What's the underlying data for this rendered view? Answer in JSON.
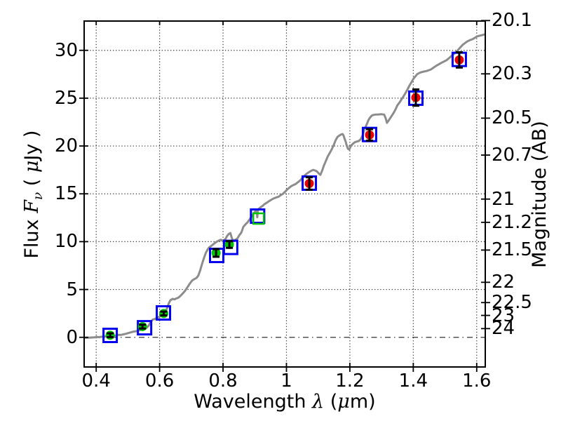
{
  "figure": {
    "background": "#ffffff",
    "ylabel_right": "Magnitude (AB)"
  },
  "chart_data": {
    "type": "line",
    "title": "",
    "xlabel": "Wavelength λ (μm)",
    "xlabel_parts": [
      {
        "text": "Wavelength  ",
        "style": "plain"
      },
      {
        "text": "λ",
        "style": "math"
      },
      {
        "text": " (",
        "style": "plain"
      },
      {
        "text": "μ",
        "style": "math"
      },
      {
        "text": "m)",
        "style": "plain"
      }
    ],
    "ylabel_left": "Flux Fν ( μJy )",
    "ylabel_left_parts": [
      {
        "text": "Flux  ",
        "style": "plain"
      },
      {
        "text": "F",
        "style": "math"
      },
      {
        "text": "ν",
        "style": "mathsub"
      },
      {
        "text": "  ( ",
        "style": "plain"
      },
      {
        "text": "μ",
        "style": "math"
      },
      {
        "text": "Jy )",
        "style": "plain"
      }
    ],
    "ylabel_right": "Magnitude (AB)",
    "xlim": [
      0.362,
      1.627
    ],
    "ylim": [
      -3.1,
      33.06
    ],
    "grid": true,
    "grid_style": "dotted",
    "zero_line_style": "dash-dot",
    "x_ticks": [
      {
        "v": 0.4,
        "label": "0.4"
      },
      {
        "v": 0.6,
        "label": "0.6"
      },
      {
        "v": 0.8,
        "label": "0.8"
      },
      {
        "v": 1.0,
        "label": "1"
      },
      {
        "v": 1.2,
        "label": "1.2"
      },
      {
        "v": 1.4,
        "label": "1.4"
      },
      {
        "v": 1.6,
        "label": "1.6"
      }
    ],
    "y_ticks": [
      {
        "v": 0,
        "label": "0"
      },
      {
        "v": 5,
        "label": "5"
      },
      {
        "v": 10,
        "label": "10"
      },
      {
        "v": 15,
        "label": "15"
      },
      {
        "v": 20,
        "label": "20"
      },
      {
        "v": 25,
        "label": "25"
      },
      {
        "v": 30,
        "label": "30"
      }
    ],
    "right_ticks": [
      {
        "label": "20.1",
        "flux": 33.11
      },
      {
        "label": "20.3",
        "flux": 27.54
      },
      {
        "label": "20.5",
        "flux": 22.91
      },
      {
        "label": "20.7",
        "flux": 19.05
      },
      {
        "label": "21",
        "flux": 14.45
      },
      {
        "label": "21.2",
        "flux": 12.02
      },
      {
        "label": "21.5",
        "flux": 9.12
      },
      {
        "label": "22",
        "flux": 5.75
      },
      {
        "label": "22.5",
        "flux": 3.63
      },
      {
        "label": "23",
        "flux": 2.29
      },
      {
        "label": "24",
        "flux": 0.91
      }
    ],
    "colors": {
      "spectrum": "#8c8c8c",
      "model_square": "#0000ee",
      "observed_green": "#00c400",
      "observed_red": "#ee0000",
      "error_bar": "#000000",
      "grid": "#333333",
      "frame": "#000000"
    },
    "series": [
      {
        "name": "model-spectrum",
        "kind": "line",
        "color": "#8c8c8c",
        "linewidth": 3,
        "points": [
          [
            0.362,
            -0.05
          ],
          [
            0.375,
            -0.04
          ],
          [
            0.385,
            -0.02
          ],
          [
            0.395,
            0.0
          ],
          [
            0.403,
            0.03
          ],
          [
            0.41,
            0.02
          ],
          [
            0.417,
            0.06
          ],
          [
            0.424,
            0.05
          ],
          [
            0.43,
            0.1
          ],
          [
            0.437,
            0.09
          ],
          [
            0.444,
            0.14
          ],
          [
            0.451,
            0.17
          ],
          [
            0.457,
            0.15
          ],
          [
            0.464,
            0.21
          ],
          [
            0.471,
            0.26
          ],
          [
            0.478,
            0.25
          ],
          [
            0.486,
            0.31
          ],
          [
            0.494,
            0.37
          ],
          [
            0.502,
            0.45
          ],
          [
            0.51,
            0.53
          ],
          [
            0.518,
            0.6
          ],
          [
            0.526,
            0.64
          ],
          [
            0.534,
            0.71
          ],
          [
            0.542,
            0.8
          ],
          [
            0.55,
            0.88
          ],
          [
            0.558,
            0.96
          ],
          [
            0.565,
            1.2
          ],
          [
            0.572,
            1.6
          ],
          [
            0.578,
            1.85
          ],
          [
            0.584,
            1.9
          ],
          [
            0.59,
            2.0
          ],
          [
            0.596,
            2.1
          ],
          [
            0.602,
            2.2
          ],
          [
            0.608,
            2.32
          ],
          [
            0.614,
            2.45
          ],
          [
            0.619,
            2.72
          ],
          [
            0.624,
            3.1
          ],
          [
            0.629,
            3.55
          ],
          [
            0.634,
            3.88
          ],
          [
            0.641,
            4.02
          ],
          [
            0.647,
            3.96
          ],
          [
            0.652,
            4.06
          ],
          [
            0.658,
            4.12
          ],
          [
            0.663,
            4.25
          ],
          [
            0.668,
            4.42
          ],
          [
            0.674,
            4.62
          ],
          [
            0.68,
            4.85
          ],
          [
            0.685,
            5.1
          ],
          [
            0.69,
            5.35
          ],
          [
            0.697,
            5.7
          ],
          [
            0.703,
            5.95
          ],
          [
            0.71,
            6.1
          ],
          [
            0.716,
            6.2
          ],
          [
            0.722,
            6.45
          ],
          [
            0.728,
            7.0
          ],
          [
            0.734,
            7.7
          ],
          [
            0.74,
            8.3
          ],
          [
            0.746,
            8.85
          ],
          [
            0.751,
            9.15
          ],
          [
            0.756,
            9.4
          ],
          [
            0.763,
            9.55
          ],
          [
            0.77,
            9.75
          ],
          [
            0.778,
            9.95
          ],
          [
            0.786,
            10.1
          ],
          [
            0.793,
            10.2
          ],
          [
            0.798,
            10.1
          ],
          [
            0.803,
            10.15
          ],
          [
            0.808,
            10.3
          ],
          [
            0.813,
            10.6
          ],
          [
            0.818,
            10.8
          ],
          [
            0.823,
            10.9
          ],
          [
            0.827,
            10.45
          ],
          [
            0.832,
            10.05
          ],
          [
            0.838,
            10.18
          ],
          [
            0.845,
            10.32
          ],
          [
            0.851,
            10.65
          ],
          [
            0.858,
            10.97
          ],
          [
            0.864,
            11.55
          ],
          [
            0.871,
            11.82
          ],
          [
            0.877,
            12.02
          ],
          [
            0.883,
            12.28
          ],
          [
            0.888,
            12.52
          ],
          [
            0.894,
            12.8
          ],
          [
            0.899,
            13.05
          ],
          [
            0.904,
            13.3
          ],
          [
            0.906,
            13.37
          ],
          [
            0.908,
            12.55
          ],
          [
            0.91,
            13.37
          ],
          [
            0.915,
            13.5
          ],
          [
            0.919,
            13.61
          ],
          [
            0.925,
            13.75
          ],
          [
            0.93,
            13.9
          ],
          [
            0.937,
            14.05
          ],
          [
            0.944,
            14.21
          ],
          [
            0.951,
            14.36
          ],
          [
            0.959,
            14.5
          ],
          [
            0.967,
            14.61
          ],
          [
            0.975,
            14.7
          ],
          [
            0.982,
            14.86
          ],
          [
            0.989,
            15.0
          ],
          [
            0.996,
            15.23
          ],
          [
            1.002,
            15.44
          ],
          [
            1.009,
            15.64
          ],
          [
            1.015,
            15.8
          ],
          [
            1.022,
            15.92
          ],
          [
            1.029,
            16.02
          ],
          [
            1.036,
            16.21
          ],
          [
            1.043,
            16.39
          ],
          [
            1.05,
            16.66
          ],
          [
            1.057,
            16.91
          ],
          [
            1.064,
            17.11
          ],
          [
            1.071,
            17.27
          ],
          [
            1.078,
            17.41
          ],
          [
            1.085,
            17.5
          ],
          [
            1.091,
            17.43
          ],
          [
            1.096,
            17.35
          ],
          [
            1.102,
            17.13
          ],
          [
            1.107,
            16.98
          ],
          [
            1.113,
            17.46
          ],
          [
            1.118,
            17.94
          ],
          [
            1.124,
            18.41
          ],
          [
            1.13,
            18.9
          ],
          [
            1.137,
            19.3
          ],
          [
            1.143,
            19.65
          ],
          [
            1.149,
            20.1
          ],
          [
            1.155,
            20.6
          ],
          [
            1.161,
            20.95
          ],
          [
            1.167,
            21.1
          ],
          [
            1.172,
            21.2
          ],
          [
            1.177,
            21.25
          ],
          [
            1.18,
            21.1
          ],
          [
            1.183,
            20.8
          ],
          [
            1.187,
            20.44
          ],
          [
            1.19,
            20.06
          ],
          [
            1.194,
            19.7
          ],
          [
            1.198,
            19.62
          ],
          [
            1.203,
            20.0
          ],
          [
            1.209,
            20.22
          ],
          [
            1.215,
            20.38
          ],
          [
            1.221,
            20.46
          ],
          [
            1.228,
            20.52
          ],
          [
            1.234,
            20.7
          ],
          [
            1.24,
            21.1
          ],
          [
            1.247,
            21.8
          ],
          [
            1.253,
            22.25
          ],
          [
            1.258,
            22.65
          ],
          [
            1.262,
            22.9
          ],
          [
            1.267,
            23.1
          ],
          [
            1.271,
            23.22
          ],
          [
            1.28,
            23.28
          ],
          [
            1.29,
            23.3
          ],
          [
            1.3,
            23.32
          ],
          [
            1.308,
            23.28
          ],
          [
            1.313,
            22.9
          ],
          [
            1.317,
            22.42
          ],
          [
            1.322,
            22.65
          ],
          [
            1.328,
            22.95
          ],
          [
            1.334,
            23.25
          ],
          [
            1.339,
            23.52
          ],
          [
            1.345,
            23.9
          ],
          [
            1.35,
            24.26
          ],
          [
            1.356,
            24.52
          ],
          [
            1.361,
            24.77
          ],
          [
            1.368,
            25.14
          ],
          [
            1.375,
            25.51
          ],
          [
            1.382,
            25.92
          ],
          [
            1.388,
            26.32
          ],
          [
            1.395,
            26.7
          ],
          [
            1.401,
            27.05
          ],
          [
            1.407,
            27.29
          ],
          [
            1.412,
            27.5
          ],
          [
            1.419,
            27.63
          ],
          [
            1.426,
            27.72
          ],
          [
            1.433,
            27.78
          ],
          [
            1.441,
            27.83
          ],
          [
            1.449,
            27.92
          ],
          [
            1.456,
            28.01
          ],
          [
            1.464,
            28.2
          ],
          [
            1.472,
            28.38
          ],
          [
            1.48,
            28.53
          ],
          [
            1.487,
            28.67
          ],
          [
            1.496,
            28.82
          ],
          [
            1.505,
            28.97
          ],
          [
            1.514,
            29.22
          ],
          [
            1.523,
            29.48
          ],
          [
            1.531,
            29.7
          ],
          [
            1.538,
            29.92
          ],
          [
            1.547,
            30.26
          ],
          [
            1.556,
            30.58
          ],
          [
            1.564,
            30.78
          ],
          [
            1.571,
            30.95
          ],
          [
            1.579,
            31.07
          ],
          [
            1.587,
            31.17
          ],
          [
            1.595,
            31.32
          ],
          [
            1.602,
            31.47
          ],
          [
            1.609,
            31.53
          ],
          [
            1.616,
            31.58
          ],
          [
            1.622,
            31.64
          ],
          [
            1.627,
            31.69
          ]
        ]
      },
      {
        "name": "model-photometry",
        "kind": "scatter",
        "marker": "open-square",
        "color": "#0000ee",
        "size": 19,
        "points": [
          {
            "x": 0.444,
            "y": 0.2
          },
          {
            "x": 0.5525,
            "y": 1.0
          },
          {
            "x": 0.612,
            "y": 2.55
          },
          {
            "x": 0.78,
            "y": 8.56
          },
          {
            "x": 0.824,
            "y": 9.4
          },
          {
            "x": 0.909,
            "y": 12.67
          },
          {
            "x": 1.072,
            "y": 16.12
          },
          {
            "x": 1.262,
            "y": 21.2
          },
          {
            "x": 1.408,
            "y": 25.0
          },
          {
            "x": 1.545,
            "y": 29.05
          }
        ]
      },
      {
        "name": "observed-photometry",
        "kind": "scatter",
        "points": [
          {
            "x": 0.444,
            "y": 0.22,
            "err": 0.2,
            "marker": "circle",
            "color": "#00c400"
          },
          {
            "x": 0.546,
            "y": 1.12,
            "err": 0.2,
            "marker": "circle",
            "color": "#00c400"
          },
          {
            "x": 0.613,
            "y": 2.49,
            "err": 0.2,
            "marker": "circle",
            "color": "#00c400"
          },
          {
            "x": 0.778,
            "y": 8.82,
            "err": 0.4,
            "marker": "circle",
            "color": "#00c400"
          },
          {
            "x": 0.82,
            "y": 9.7,
            "err": 0.35,
            "marker": "circle",
            "color": "#00c400"
          },
          {
            "x": 0.912,
            "y": 12.41,
            "err": null,
            "marker": "open-square",
            "color": "#00c400"
          },
          {
            "x": 1.072,
            "y": 16.08,
            "err": 0.65,
            "marker": "circle",
            "color": "#ee0000"
          },
          {
            "x": 1.262,
            "y": 21.16,
            "err": 0.6,
            "marker": "circle",
            "color": "#ee0000"
          },
          {
            "x": 1.408,
            "y": 25.06,
            "err": 0.85,
            "marker": "circle",
            "color": "#ee0000"
          },
          {
            "x": 1.545,
            "y": 29.0,
            "err": 0.8,
            "marker": "circle",
            "color": "#ee0000"
          }
        ]
      }
    ]
  }
}
